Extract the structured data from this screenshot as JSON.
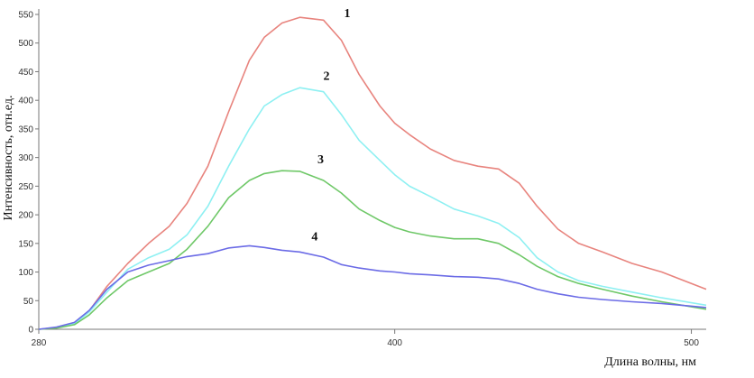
{
  "chart_data": {
    "type": "line",
    "title": "",
    "xlabel": "Длина волны, нм",
    "ylabel": "Интенсивность, отн.ед.",
    "xlim": [
      280,
      505
    ],
    "ylim": [
      0,
      550
    ],
    "xticks": [
      280,
      400,
      500
    ],
    "yticks": [
      0,
      50,
      100,
      150,
      200,
      250,
      300,
      350,
      400,
      450,
      500,
      550
    ],
    "grid": false,
    "legend": "none",
    "series": [
      {
        "label": "1",
        "color": "#e8847e",
        "x": [
          280,
          286,
          292,
          297,
          303,
          310,
          317,
          324,
          330,
          337,
          344,
          351,
          356,
          362,
          368,
          376,
          382,
          388,
          395,
          400,
          405,
          412,
          420,
          428,
          435,
          442,
          448,
          455,
          462,
          470,
          480,
          490,
          505
        ],
        "y": [
          0,
          3,
          10,
          32,
          75,
          115,
          150,
          180,
          220,
          285,
          380,
          470,
          510,
          535,
          545,
          540,
          505,
          445,
          390,
          360,
          340,
          315,
          295,
          285,
          280,
          255,
          215,
          175,
          150,
          135,
          115,
          100,
          70
        ]
      },
      {
        "label": "2",
        "color": "#8ef0f2",
        "x": [
          280,
          286,
          292,
          297,
          303,
          310,
          317,
          324,
          330,
          337,
          344,
          351,
          356,
          362,
          368,
          376,
          382,
          388,
          395,
          400,
          405,
          412,
          420,
          428,
          435,
          442,
          448,
          455,
          462,
          470,
          480,
          490,
          505
        ],
        "y": [
          0,
          3,
          10,
          30,
          65,
          105,
          125,
          140,
          165,
          215,
          285,
          350,
          390,
          410,
          422,
          415,
          375,
          330,
          295,
          270,
          250,
          232,
          210,
          198,
          185,
          160,
          125,
          100,
          85,
          75,
          65,
          55,
          42
        ]
      },
      {
        "label": "3",
        "color": "#6fc868",
        "x": [
          280,
          286,
          292,
          297,
          303,
          310,
          317,
          324,
          330,
          337,
          344,
          351,
          356,
          362,
          368,
          376,
          382,
          388,
          395,
          400,
          405,
          412,
          420,
          428,
          435,
          442,
          448,
          455,
          462,
          470,
          480,
          490,
          505
        ],
        "y": [
          0,
          2,
          8,
          25,
          55,
          85,
          100,
          115,
          140,
          180,
          230,
          260,
          272,
          277,
          276,
          260,
          238,
          210,
          190,
          178,
          170,
          163,
          158,
          158,
          150,
          130,
          110,
          92,
          80,
          70,
          58,
          48,
          35
        ]
      },
      {
        "label": "4",
        "color": "#6b6be6",
        "x": [
          280,
          286,
          292,
          297,
          303,
          310,
          317,
          324,
          330,
          337,
          344,
          351,
          356,
          362,
          368,
          376,
          382,
          388,
          395,
          400,
          405,
          412,
          420,
          428,
          435,
          442,
          448,
          455,
          462,
          470,
          480,
          490,
          505
        ],
        "y": [
          0,
          4,
          12,
          33,
          70,
          100,
          112,
          120,
          127,
          132,
          142,
          146,
          143,
          138,
          135,
          126,
          113,
          107,
          102,
          100,
          97,
          95,
          92,
          91,
          88,
          80,
          70,
          62,
          56,
          52,
          48,
          45,
          38
        ]
      }
    ],
    "series_labels": [
      {
        "text": "1",
        "x": 384,
        "y": 545
      },
      {
        "text": "2",
        "x": 377,
        "y": 436
      },
      {
        "text": "3",
        "x": 375,
        "y": 290
      },
      {
        "text": "4",
        "x": 373,
        "y": 155
      }
    ]
  }
}
